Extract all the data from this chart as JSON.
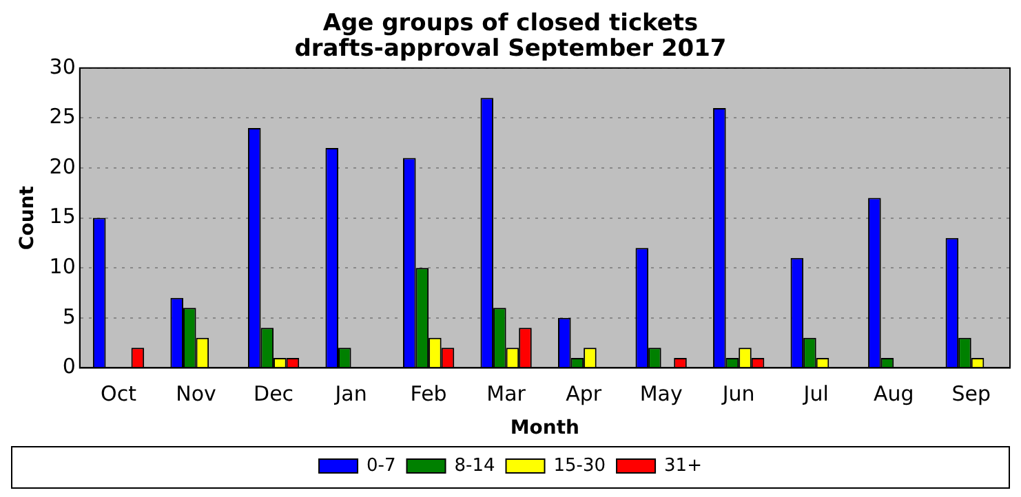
{
  "chart_data": {
    "type": "bar",
    "title": "Age groups of closed tickets\ndrafts-approval September 2017",
    "xlabel": "Month",
    "ylabel": "Count",
    "categories": [
      "Oct",
      "Nov",
      "Dec",
      "Jan",
      "Feb",
      "Mar",
      "Apr",
      "May",
      "Jun",
      "Jul",
      "Aug",
      "Sep"
    ],
    "series": [
      {
        "name": "0-7",
        "color": "#0000ff",
        "values": [
          15,
          7,
          24,
          22,
          21,
          27,
          5,
          12,
          26,
          11,
          17,
          13
        ]
      },
      {
        "name": "8-14",
        "color": "#008000",
        "values": [
          0,
          6,
          4,
          2,
          10,
          6,
          1,
          2,
          1,
          3,
          1,
          3
        ]
      },
      {
        "name": "15-30",
        "color": "#ffff00",
        "values": [
          0,
          3,
          1,
          0,
          3,
          2,
          2,
          0,
          2,
          1,
          0,
          1
        ]
      },
      {
        "name": "31+",
        "color": "#ff0000",
        "values": [
          2,
          0,
          1,
          0,
          2,
          4,
          0,
          1,
          1,
          0,
          0,
          0
        ]
      }
    ],
    "ylim": [
      0,
      30
    ],
    "yticks": [
      0,
      5,
      10,
      15,
      20,
      25,
      30
    ],
    "grid": "y",
    "legend": "bottom"
  }
}
